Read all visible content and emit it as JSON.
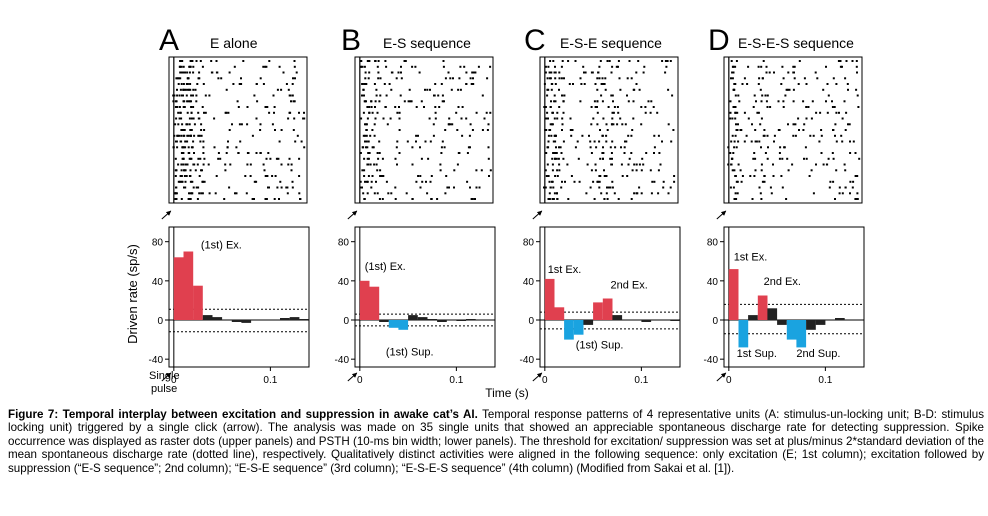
{
  "figure": {
    "ylabel": "Driven rate (sp/s)",
    "xlabel": "Time (s)",
    "single_pulse_label_line1": "Single",
    "single_pulse_label_line2": "pulse",
    "panels": [
      {
        "letter": "A",
        "title": "E  alone"
      },
      {
        "letter": "B",
        "title": "E-S sequence"
      },
      {
        "letter": "C",
        "title": "E-S-E sequence"
      },
      {
        "letter": "D",
        "title": "E-S-E-S sequence"
      }
    ]
  },
  "chart_data": [
    {
      "type": "bar",
      "panel": "A",
      "x_unit": "s",
      "bin_width": 0.01,
      "xlim": [
        -0.005,
        0.14
      ],
      "ylim": [
        -48,
        95
      ],
      "yticks": [
        -40,
        0,
        40,
        80
      ],
      "xticks": [
        0,
        0.1
      ],
      "threshold": [
        11,
        -12
      ],
      "x": [
        0.0,
        0.01,
        0.02,
        0.03,
        0.04,
        0.05,
        0.06,
        0.07,
        0.08,
        0.09,
        0.1,
        0.11,
        0.12,
        0.13
      ],
      "values": [
        64,
        70,
        35,
        5,
        3,
        0,
        -2,
        -3,
        0,
        0,
        0,
        2,
        3,
        1
      ],
      "excitation_bins": [
        0,
        1,
        2
      ],
      "suppression_bins": [],
      "annotations": [
        {
          "text": "(1st) Ex.",
          "x": 0.028,
          "y": 73
        }
      ]
    },
    {
      "type": "bar",
      "panel": "B",
      "x_unit": "s",
      "bin_width": 0.01,
      "xlim": [
        -0.005,
        0.14
      ],
      "ylim": [
        -48,
        95
      ],
      "yticks": [
        -40,
        0,
        40,
        80
      ],
      "xticks": [
        0,
        0.1
      ],
      "threshold": [
        6,
        -6
      ],
      "x": [
        0.0,
        0.01,
        0.02,
        0.03,
        0.04,
        0.05,
        0.06,
        0.07,
        0.08,
        0.09,
        0.1,
        0.11,
        0.12,
        0.13
      ],
      "values": [
        40,
        34,
        -2,
        -8,
        -10,
        5,
        3,
        1,
        -2,
        0,
        -1,
        1,
        0,
        0
      ],
      "excitation_bins": [
        0,
        1
      ],
      "suppression_bins": [
        3,
        4
      ],
      "annotations": [
        {
          "text": "(1st) Ex.",
          "x": 0.005,
          "y": 51
        },
        {
          "text": "(1st) Sup.",
          "x": 0.027,
          "y": -36
        }
      ]
    },
    {
      "type": "bar",
      "panel": "C",
      "x_unit": "s",
      "bin_width": 0.01,
      "xlim": [
        -0.005,
        0.14
      ],
      "ylim": [
        -48,
        95
      ],
      "yticks": [
        -40,
        0,
        40,
        80
      ],
      "xticks": [
        0,
        0.1
      ],
      "threshold": [
        8,
        -9
      ],
      "x": [
        0.0,
        0.01,
        0.02,
        0.03,
        0.04,
        0.05,
        0.06,
        0.07,
        0.08,
        0.09,
        0.1,
        0.11,
        0.12,
        0.13
      ],
      "values": [
        42,
        13,
        -20,
        -15,
        -5,
        18,
        22,
        5,
        0,
        0,
        -2,
        0,
        0,
        -1
      ],
      "excitation_bins": [
        0,
        1,
        5,
        6
      ],
      "suppression_bins": [
        2,
        3
      ],
      "annotations": [
        {
          "text": "1st Ex.",
          "x": 0.003,
          "y": 48
        },
        {
          "text": "2nd Ex.",
          "x": 0.068,
          "y": 32
        },
        {
          "text": "(1st) Sup.",
          "x": 0.032,
          "y": -29
        }
      ]
    },
    {
      "type": "bar",
      "panel": "D",
      "x_unit": "s",
      "bin_width": 0.01,
      "xlim": [
        -0.005,
        0.14
      ],
      "ylim": [
        -48,
        95
      ],
      "yticks": [
        -40,
        0,
        40,
        80
      ],
      "xticks": [
        0,
        0.1
      ],
      "threshold": [
        16,
        -14
      ],
      "x": [
        0.0,
        0.01,
        0.02,
        0.03,
        0.04,
        0.05,
        0.06,
        0.07,
        0.08,
        0.09,
        0.1,
        0.11,
        0.12,
        0.13
      ],
      "values": [
        52,
        -28,
        5,
        25,
        12,
        -5,
        -20,
        -28,
        -10,
        -5,
        0,
        2,
        0,
        0
      ],
      "excitation_bins": [
        0,
        3
      ],
      "suppression_bins": [
        1,
        6,
        7
      ],
      "annotations": [
        {
          "text": "1st Ex.",
          "x": 0.005,
          "y": 61
        },
        {
          "text": "2nd Ex.",
          "x": 0.036,
          "y": 36
        },
        {
          "text": "1st Sup.",
          "x": 0.008,
          "y": -38
        },
        {
          "text": "2nd Sup.",
          "x": 0.07,
          "y": -38
        }
      ]
    }
  ],
  "colors": {
    "excitation": "#e0404f",
    "suppression": "#1aa3e0",
    "neutral": "#222222"
  },
  "caption": {
    "fig_label": "Figure 7: Temporal interplay between excitation and suppression in awake cat’s AI.",
    "text": " Temporal response patterns of 4 representative units (A: stimulus-un-locking unit; B-D: stimulus locking unit) triggered by a single click (arrow). The analysis was made on 35 single units that showed an appreciable spontaneous discharge rate for detecting suppression. Spike occurrence was displayed as raster dots (upper panels) and PSTH (10-ms bin width; lower panels). The threshold for excitation/ suppression was set at plus/minus 2*standard deviation of the mean spontaneous discharge rate (dotted line), respectively. Qualitatively distinct activities were aligned in the following sequence: only excitation (E; 1st column); excitation followed by suppression (“E-S sequence”; 2nd column); “E-S-E sequence” (3rd column); “E-S-E-S sequence” (4th column) (Modified from Sakai et al. [1])."
  }
}
